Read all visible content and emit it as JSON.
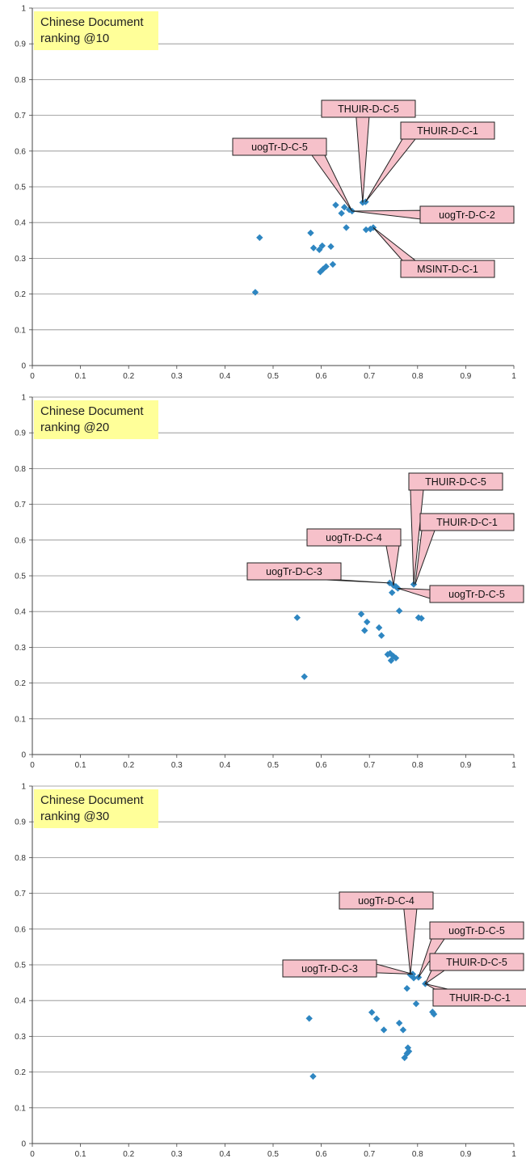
{
  "colors": {
    "marker": "#2e86c1",
    "gridline": "#8c8c8c",
    "callout_fill": "#f6c1ca",
    "callout_stroke": "#222222",
    "title_bg": "#ffff99"
  },
  "chart_data": [
    {
      "type": "scatter",
      "title": "Chinese Document\nranking @10",
      "xlim": [
        0,
        1
      ],
      "ylim": [
        0,
        1
      ],
      "xticks": [
        "0",
        "0.1",
        "0.2",
        "0.3",
        "0.4",
        "0.5",
        "0.6",
        "0.7",
        "0.8",
        "0.9",
        "1"
      ],
      "yticks": [
        "0",
        "0.1",
        "0.2",
        "0.3",
        "0.4",
        "0.5",
        "0.6",
        "0.7",
        "0.8",
        "0.9",
        "1"
      ],
      "grid": "horizontal",
      "points": [
        [
          0.463,
          0.205
        ],
        [
          0.472,
          0.358
        ],
        [
          0.578,
          0.371
        ],
        [
          0.584,
          0.329
        ],
        [
          0.596,
          0.324
        ],
        [
          0.602,
          0.335
        ],
        [
          0.598,
          0.262
        ],
        [
          0.604,
          0.27
        ],
        [
          0.61,
          0.277
        ],
        [
          0.62,
          0.333
        ],
        [
          0.624,
          0.283
        ],
        [
          0.63,
          0.449
        ],
        [
          0.642,
          0.426
        ],
        [
          0.648,
          0.443
        ],
        [
          0.652,
          0.386
        ],
        [
          0.658,
          0.436
        ],
        [
          0.664,
          0.432
        ],
        [
          0.686,
          0.456
        ],
        [
          0.692,
          0.458
        ],
        [
          0.693,
          0.38
        ],
        [
          0.702,
          0.382
        ],
        [
          0.708,
          0.386
        ]
      ],
      "labels": [
        {
          "text": "THUIR-D-C-5",
          "point": [
            0.686,
            0.456
          ]
        },
        {
          "text": "THUIR-D-C-1",
          "point": [
            0.692,
            0.458
          ]
        },
        {
          "text": "uogTr-D-C-5",
          "point": [
            0.664,
            0.432
          ]
        },
        {
          "text": "uogTr-D-C-2",
          "point": [
            0.664,
            0.432
          ]
        },
        {
          "text": "MSINT-D-C-1",
          "point": [
            0.708,
            0.386
          ]
        }
      ]
    },
    {
      "type": "scatter",
      "title": "Chinese Document\nranking @20",
      "xlim": [
        0,
        1
      ],
      "ylim": [
        0,
        1
      ],
      "xticks": [
        "0",
        "0.1",
        "0.2",
        "0.3",
        "0.4",
        "0.5",
        "0.6",
        "0.7",
        "0.8",
        "0.9",
        "1"
      ],
      "yticks": [
        "0",
        "0.1",
        "0.2",
        "0.3",
        "0.4",
        "0.5",
        "0.6",
        "0.7",
        "0.8",
        "0.9",
        "1"
      ],
      "grid": "horizontal",
      "points": [
        [
          0.55,
          0.383
        ],
        [
          0.565,
          0.218
        ],
        [
          0.683,
          0.393
        ],
        [
          0.69,
          0.347
        ],
        [
          0.695,
          0.371
        ],
        [
          0.72,
          0.355
        ],
        [
          0.725,
          0.333
        ],
        [
          0.738,
          0.28
        ],
        [
          0.743,
          0.283
        ],
        [
          0.745,
          0.263
        ],
        [
          0.75,
          0.275
        ],
        [
          0.755,
          0.27
        ],
        [
          0.742,
          0.48
        ],
        [
          0.747,
          0.453
        ],
        [
          0.75,
          0.473
        ],
        [
          0.755,
          0.47
        ],
        [
          0.759,
          0.465
        ],
        [
          0.762,
          0.402
        ],
        [
          0.792,
          0.476
        ],
        [
          0.802,
          0.383
        ],
        [
          0.808,
          0.381
        ]
      ],
      "labels": [
        {
          "text": "THUIR-D-C-5",
          "point": [
            0.792,
            0.476
          ]
        },
        {
          "text": "THUIR-D-C-1",
          "point": [
            0.795,
            0.476
          ]
        },
        {
          "text": "uogTr-D-C-4",
          "point": [
            0.75,
            0.473
          ]
        },
        {
          "text": "uogTr-D-C-3",
          "point": [
            0.742,
            0.48
          ]
        },
        {
          "text": "uogTr-D-C-5",
          "point": [
            0.759,
            0.465
          ]
        }
      ]
    },
    {
      "type": "scatter",
      "title": "Chinese Document\nranking @30",
      "xlim": [
        0,
        1
      ],
      "ylim": [
        0,
        1
      ],
      "xticks": [
        "0",
        "0.1",
        "0.2",
        "0.3",
        "0.4",
        "0.5",
        "0.6",
        "0.7",
        "0.8",
        "0.9",
        "1"
      ],
      "yticks": [
        "0",
        "0.1",
        "0.2",
        "0.3",
        "0.4",
        "0.5",
        "0.6",
        "0.7",
        "0.8",
        "0.9",
        "1"
      ],
      "grid": "horizontal",
      "points": [
        [
          0.575,
          0.35
        ],
        [
          0.583,
          0.188
        ],
        [
          0.705,
          0.367
        ],
        [
          0.715,
          0.349
        ],
        [
          0.73,
          0.318
        ],
        [
          0.762,
          0.337
        ],
        [
          0.77,
          0.318
        ],
        [
          0.773,
          0.24
        ],
        [
          0.778,
          0.252
        ],
        [
          0.78,
          0.268
        ],
        [
          0.782,
          0.258
        ],
        [
          0.778,
          0.434
        ],
        [
          0.785,
          0.472
        ],
        [
          0.79,
          0.474
        ],
        [
          0.792,
          0.463
        ],
        [
          0.797,
          0.391
        ],
        [
          0.802,
          0.465
        ],
        [
          0.816,
          0.447
        ],
        [
          0.831,
          0.368
        ],
        [
          0.834,
          0.362
        ]
      ],
      "labels": [
        {
          "text": "uogTr-D-C-4",
          "point": [
            0.785,
            0.472
          ]
        },
        {
          "text": "uogTr-D-C-5",
          "point": [
            0.802,
            0.465
          ]
        },
        {
          "text": "THUIR-D-C-5",
          "point": [
            0.816,
            0.447
          ]
        },
        {
          "text": "uogTr-D-C-3",
          "point": [
            0.79,
            0.474
          ]
        },
        {
          "text": "THUIR-D-C-1",
          "point": [
            0.816,
            0.447
          ]
        }
      ]
    }
  ]
}
